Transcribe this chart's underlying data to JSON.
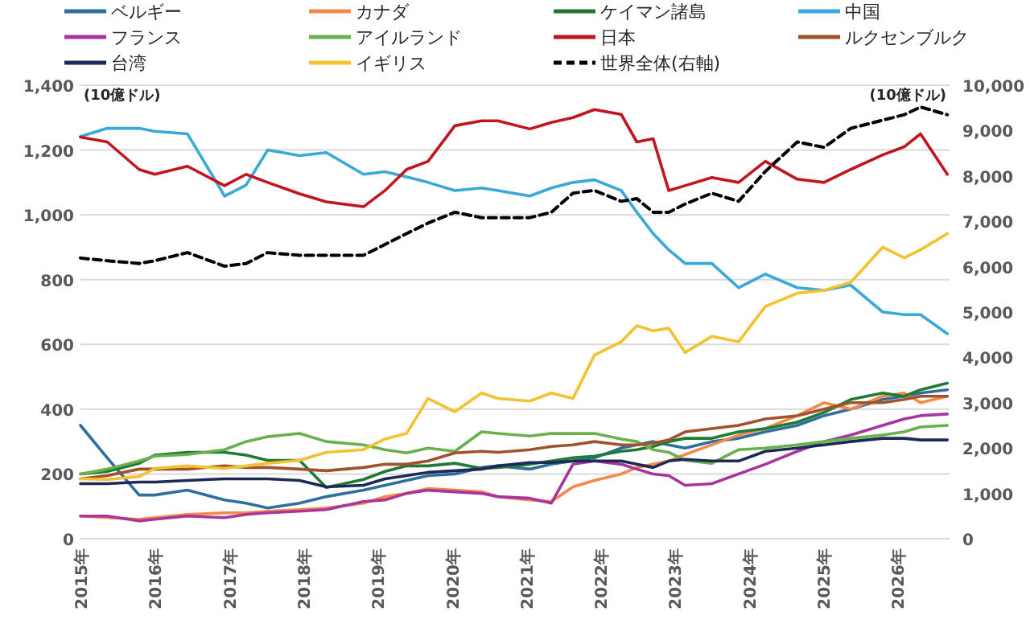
{
  "chart_data": {
    "type": "line",
    "ylabel": "(10億ドル)",
    "y2label": "(10億ドル)",
    "x": [
      2015.0,
      2015.36,
      2015.79,
      2016.0,
      2016.44,
      2016.94,
      2017.23,
      2017.52,
      2017.95,
      2018.31,
      2018.81,
      2019.1,
      2019.39,
      2019.68,
      2020.04,
      2020.4,
      2020.62,
      2021.05,
      2021.34,
      2021.63,
      2021.92,
      2022.28,
      2022.49,
      2022.71,
      2022.92,
      2023.14,
      2023.5,
      2023.86,
      2024.22,
      2024.65,
      2025.01,
      2025.37,
      2025.8,
      2026.09,
      2026.31,
      2026.67
    ],
    "xlim": [
      2015,
      2026.7
    ],
    "xticks": [
      {
        "value": 2015,
        "label": "2015年"
      },
      {
        "value": 2016,
        "label": "2016年"
      },
      {
        "value": 2017,
        "label": "2017年"
      },
      {
        "value": 2018,
        "label": "2018年"
      },
      {
        "value": 2019,
        "label": "2019年"
      },
      {
        "value": 2020,
        "label": "2020年"
      },
      {
        "value": 2021,
        "label": "2021年"
      },
      {
        "value": 2022,
        "label": "2022年"
      },
      {
        "value": 2023,
        "label": "2023年"
      },
      {
        "value": 2024,
        "label": "2024年"
      },
      {
        "value": 2025,
        "label": "2025年"
      },
      {
        "value": 2026,
        "label": "2026年"
      }
    ],
    "ylim": [
      0,
      1400
    ],
    "yticks": [
      0,
      200,
      400,
      600,
      800,
      {
        "value": 1000,
        "label": "1,000"
      },
      {
        "value": 1200,
        "label": "1,200"
      },
      {
        "value": 1400,
        "label": "1,400"
      }
    ],
    "y2lim": [
      0,
      10000
    ],
    "y2ticks": [
      0,
      {
        "value": 1000,
        "label": "1,000"
      },
      {
        "value": 2000,
        "label": "2,000"
      },
      {
        "value": 3000,
        "label": "3,000"
      },
      {
        "value": 4000,
        "label": "4,000"
      },
      {
        "value": 5000,
        "label": "5,000"
      },
      {
        "value": 6000,
        "label": "6,000"
      },
      {
        "value": 7000,
        "label": "7,000"
      },
      {
        "value": 8000,
        "label": "8,000"
      },
      {
        "value": 9000,
        "label": "9,000"
      },
      {
        "value": 10000,
        "label": "10,000"
      }
    ],
    "grid": "y",
    "legend": "top",
    "marker": "none",
    "line_style": "solid",
    "series": [
      {
        "name": "ベルギー",
        "color": "#2e6f9e",
        "values": [
          350,
          250,
          135,
          135,
          150,
          120,
          110,
          95,
          110,
          130,
          150,
          165,
          180,
          195,
          200,
          220,
          225,
          215,
          230,
          240,
          250,
          280,
          290,
          300,
          290,
          280,
          300,
          310,
          330,
          350,
          380,
          400,
          430,
          440,
          450,
          460
        ]
      },
      {
        "name": "カナダ",
        "color": "#f4894a",
        "values": [
          70,
          65,
          60,
          65,
          75,
          80,
          80,
          85,
          90,
          95,
          110,
          130,
          140,
          155,
          150,
          145,
          130,
          120,
          115,
          160,
          180,
          200,
          220,
          230,
          240,
          260,
          290,
          320,
          340,
          380,
          420,
          400,
          440,
          450,
          420,
          440
        ]
      },
      {
        "name": "ケイマン諸島",
        "color": "#1e7b34",
        "values": [
          200,
          208,
          233,
          258,
          267,
          267,
          258,
          242,
          242,
          158,
          183,
          208,
          225,
          225,
          233,
          217,
          220,
          230,
          240,
          250,
          255,
          270,
          275,
          285,
          300,
          310,
          310,
          330,
          340,
          360,
          390,
          430,
          450,
          440,
          460,
          480
        ]
      },
      {
        "name": "中国",
        "color": "#3aa8d8",
        "values": [
          1242,
          1267,
          1267,
          1258,
          1250,
          1058,
          1092,
          1200,
          1183,
          1192,
          1125,
          1133,
          1117,
          1100,
          1075,
          1083,
          1075,
          1058,
          1083,
          1100,
          1108,
          1075,
          1008,
          942,
          892,
          850,
          850,
          775,
          817,
          775,
          767,
          783,
          700,
          692,
          692,
          633
        ]
      },
      {
        "name": "フランス",
        "color": "#a8359e",
        "values": [
          70,
          70,
          55,
          60,
          70,
          65,
          75,
          80,
          85,
          90,
          115,
          120,
          140,
          150,
          145,
          140,
          130,
          125,
          110,
          230,
          240,
          230,
          215,
          200,
          195,
          165,
          170,
          200,
          230,
          270,
          300,
          320,
          350,
          370,
          380,
          385
        ]
      },
      {
        "name": "アイルランド",
        "color": "#6ab04c",
        "values": [
          200,
          215,
          240,
          255,
          260,
          275,
          300,
          315,
          325,
          300,
          290,
          275,
          265,
          280,
          270,
          330,
          325,
          317,
          325,
          325,
          325,
          308,
          300,
          275,
          267,
          242,
          233,
          275,
          280,
          290,
          300,
          310,
          320,
          330,
          345,
          350
        ]
      },
      {
        "name": "日本",
        "color": "#c0171f",
        "values": [
          1240,
          1225,
          1140,
          1125,
          1150,
          1090,
          1125,
          1100,
          1065,
          1040,
          1025,
          1075,
          1140,
          1165,
          1275,
          1290,
          1290,
          1265,
          1285,
          1300,
          1325,
          1310,
          1225,
          1235,
          1075,
          1090,
          1115,
          1100,
          1165,
          1110,
          1100,
          1140,
          1185,
          1210,
          1250,
          1125
        ]
      },
      {
        "name": "ルクセンブルク",
        "color": "#a0522d",
        "values": [
          185,
          195,
          215,
          215,
          215,
          225,
          220,
          220,
          215,
          210,
          220,
          230,
          230,
          240,
          265,
          270,
          267,
          275,
          285,
          290,
          300,
          290,
          290,
          295,
          305,
          330,
          340,
          350,
          370,
          380,
          400,
          420,
          420,
          430,
          440,
          440
        ]
      },
      {
        "name": "台湾",
        "color": "#1b2a56",
        "values": [
          170,
          170,
          175,
          175,
          180,
          185,
          185,
          185,
          180,
          160,
          165,
          185,
          195,
          205,
          210,
          215,
          225,
          235,
          235,
          240,
          240,
          240,
          230,
          220,
          240,
          245,
          240,
          240,
          270,
          280,
          290,
          300,
          310,
          310,
          305,
          305
        ]
      },
      {
        "name": "イギリス",
        "color": "#f2c230",
        "values": [
          185,
          183,
          192,
          217,
          225,
          217,
          225,
          233,
          242,
          267,
          275,
          308,
          325,
          433,
          392,
          450,
          433,
          425,
          450,
          433,
          567,
          608,
          658,
          642,
          650,
          575,
          625,
          608,
          717,
          758,
          767,
          792,
          900,
          867,
          892,
          942
        ]
      },
      {
        "name": "世界全体(右軸)",
        "color": "#000000",
        "axis": "y2",
        "line_style": "dashed",
        "values": [
          6190,
          6130,
          6070,
          6130,
          6310,
          6010,
          6070,
          6310,
          6250,
          6250,
          6250,
          6490,
          6730,
          6960,
          7200,
          7080,
          7080,
          7080,
          7200,
          7620,
          7680,
          7440,
          7500,
          7200,
          7200,
          7380,
          7620,
          7440,
          8100,
          8750,
          8630,
          9050,
          9230,
          9350,
          9520,
          9350
        ]
      }
    ]
  }
}
